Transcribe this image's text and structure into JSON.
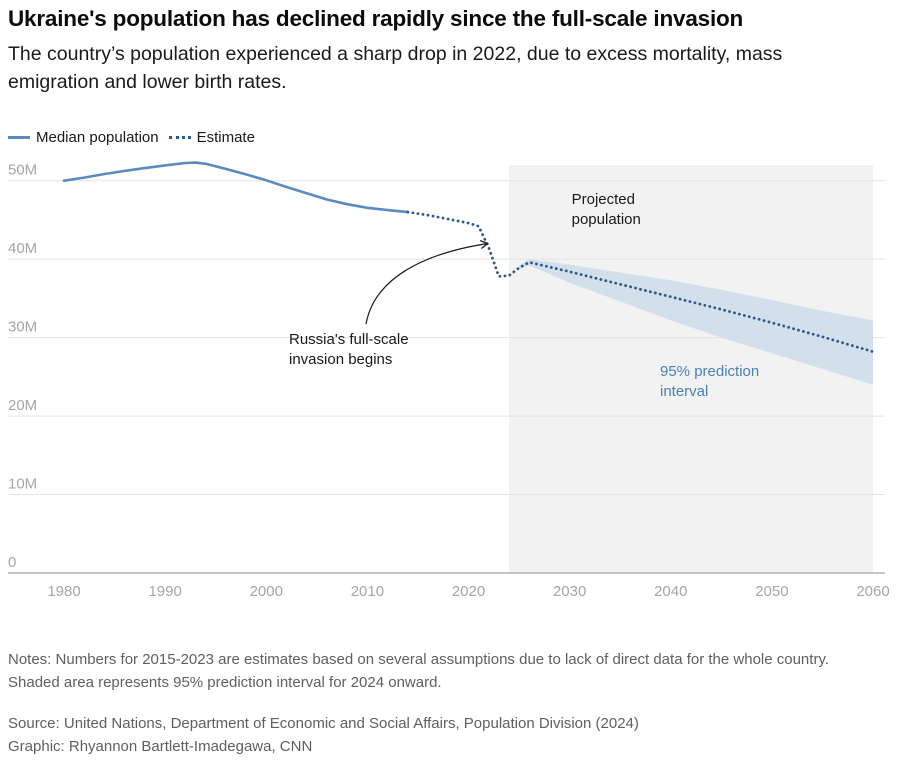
{
  "header": {
    "title": "Ukraine's population has declined rapidly since the full-scale invasion",
    "subtitle": "The country’s population experienced a sharp drop in 2022, due to excess mortality, mass emigration and lower birth rates."
  },
  "legend": {
    "median_label": "Median population",
    "estimate_label": "Estimate"
  },
  "colors": {
    "median": "#5b8bbe",
    "estimate": "#2a5a8c",
    "band": "#d3dfea",
    "shade": "#f2f2f2",
    "grid": "#e4e4e4",
    "tick": "#a6a6a6",
    "interval_text": "#4a80b5"
  },
  "chart_data": {
    "type": "line",
    "title": "Ukraine's population has declined rapidly since the full-scale invasion",
    "xlabel": "",
    "ylabel": "",
    "xlim": [
      1980,
      2060
    ],
    "ylim": [
      0,
      52000000
    ],
    "x_ticks": [
      1980,
      1990,
      2000,
      2010,
      2020,
      2030,
      2040,
      2050,
      2060
    ],
    "y_ticks": [
      0,
      10000000,
      20000000,
      30000000,
      40000000,
      50000000
    ],
    "y_tick_labels": [
      "0",
      "10M",
      "20M",
      "30M",
      "40M",
      "50M"
    ],
    "grid": true,
    "series": [
      {
        "name": "Median population",
        "style": "solid",
        "x": [
          1980,
          1982,
          1984,
          1986,
          1988,
          1990,
          1991,
          1992,
          1993,
          1994,
          1996,
          1998,
          2000,
          2002,
          2004,
          2006,
          2008,
          2010,
          2012,
          2014
        ],
        "y": [
          50000000,
          50400000,
          50850000,
          51250000,
          51600000,
          51950000,
          52100000,
          52250000,
          52300000,
          52150000,
          51500000,
          50800000,
          50050000,
          49200000,
          48400000,
          47600000,
          47000000,
          46550000,
          46250000,
          46000000
        ]
      },
      {
        "name": "Estimate",
        "style": "dotted",
        "x": [
          2014,
          2016,
          2018,
          2020,
          2021,
          2022,
          2023,
          2024,
          2025,
          2026,
          2030,
          2035,
          2040,
          2045,
          2050,
          2055,
          2060
        ],
        "y": [
          46000000,
          45600000,
          45100000,
          44600000,
          44200000,
          41500000,
          37800000,
          37900000,
          38900000,
          39600000,
          38400000,
          36800000,
          35200000,
          33600000,
          31900000,
          30100000,
          28200000
        ]
      }
    ],
    "prediction_interval": {
      "name": "95% prediction interval",
      "x": [
        2025,
        2026,
        2030,
        2035,
        2040,
        2045,
        2050,
        2055,
        2060
      ],
      "lower": [
        38700000,
        39200000,
        37000000,
        34600000,
        32200000,
        30000000,
        28000000,
        26000000,
        24000000
      ],
      "upper": [
        39200000,
        40000000,
        39300000,
        38300000,
        37300000,
        36100000,
        34800000,
        33400000,
        32200000
      ]
    },
    "projected_region": {
      "x_start": 2024,
      "x_end": 2060,
      "label_line1": "Projected",
      "label_line2": "population"
    },
    "annotations": {
      "invasion_line1": "Russia's full-scale",
      "invasion_line2": "invasion begins",
      "invasion_target_x": 2022,
      "invasion_target_y": 42000000,
      "interval_line1": "95% prediction",
      "interval_line2": "interval"
    }
  },
  "footer": {
    "notes": "Notes: Numbers for 2015-2023 are estimates based on several assumptions due to lack of direct data for the whole country. Shaded area represents 95% prediction interval for 2024 onward.",
    "source": "Source: United Nations, Department of Economic and Social Affairs, Population Division (2024)",
    "credit": "Graphic: Rhyannon Bartlett-Imadegawa, CNN"
  }
}
